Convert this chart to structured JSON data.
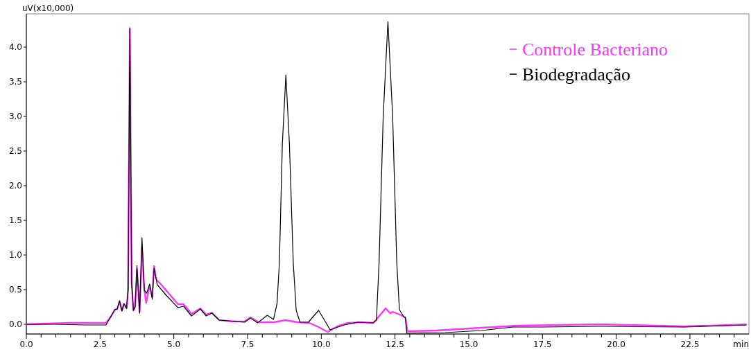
{
  "chart_data": {
    "type": "line",
    "ylabel": "uV(x10,000)",
    "xlabel": "min",
    "xlim": [
      0,
      24.5
    ],
    "ylim": [
      -0.14,
      4.48
    ],
    "xticks": [
      {
        "value": 0,
        "label": "0.0"
      },
      {
        "value": 0.5,
        "label": null
      },
      {
        "value": 1,
        "label": null
      },
      {
        "value": 1.5,
        "label": null
      },
      {
        "value": 2,
        "label": null
      },
      {
        "value": 2.5,
        "label": "2.5"
      },
      {
        "value": 3,
        "label": null
      },
      {
        "value": 3.5,
        "label": null
      },
      {
        "value": 4,
        "label": null
      },
      {
        "value": 4.5,
        "label": null
      },
      {
        "value": 5,
        "label": "5.0"
      },
      {
        "value": 5.5,
        "label": null
      },
      {
        "value": 6,
        "label": null
      },
      {
        "value": 6.5,
        "label": null
      },
      {
        "value": 7,
        "label": null
      },
      {
        "value": 7.5,
        "label": "7.5"
      },
      {
        "value": 8,
        "label": null
      },
      {
        "value": 8.5,
        "label": null
      },
      {
        "value": 9,
        "label": null
      },
      {
        "value": 9.5,
        "label": null
      },
      {
        "value": 10,
        "label": "10.0"
      },
      {
        "value": 10.5,
        "label": null
      },
      {
        "value": 11,
        "label": null
      },
      {
        "value": 11.5,
        "label": null
      },
      {
        "value": 12,
        "label": null
      },
      {
        "value": 12.5,
        "label": "12.5"
      },
      {
        "value": 13,
        "label": null
      },
      {
        "value": 13.5,
        "label": null
      },
      {
        "value": 14,
        "label": null
      },
      {
        "value": 14.5,
        "label": null
      },
      {
        "value": 15,
        "label": "15.0"
      },
      {
        "value": 15.5,
        "label": null
      },
      {
        "value": 16,
        "label": null
      },
      {
        "value": 16.5,
        "label": null
      },
      {
        "value": 17,
        "label": null
      },
      {
        "value": 17.5,
        "label": "17.5"
      },
      {
        "value": 18,
        "label": null
      },
      {
        "value": 18.5,
        "label": null
      },
      {
        "value": 19,
        "label": null
      },
      {
        "value": 19.5,
        "label": null
      },
      {
        "value": 20,
        "label": "20.0"
      },
      {
        "value": 20.5,
        "label": null
      },
      {
        "value": 21,
        "label": null
      },
      {
        "value": 21.5,
        "label": null
      },
      {
        "value": 22,
        "label": null
      },
      {
        "value": 22.5,
        "label": "22.5"
      },
      {
        "value": 23,
        "label": null
      },
      {
        "value": 23.5,
        "label": null
      },
      {
        "value": 24,
        "label": null
      }
    ],
    "yticks": [
      {
        "value": 0,
        "label": "0.0"
      },
      0.5,
      {
        "value": 1,
        "label": "1.0"
      },
      1.5,
      {
        "value": 2,
        "label": "2.0"
      },
      2.5,
      {
        "value": 3,
        "label": "3.0"
      },
      3.5,
      {
        "value": 4,
        "label": "4.0"
      }
    ],
    "grid": false,
    "legend": "top right",
    "line_style": "solid",
    "marker": "none",
    "series": [
      {
        "name": "Controle Bacteriano",
        "color": "#ff33ff",
        "x": [
          0,
          1.5,
          2.7,
          2.85,
          3.0,
          3.08,
          3.16,
          3.24,
          3.31,
          3.4,
          3.45,
          3.51,
          3.57,
          3.63,
          3.69,
          3.75,
          3.84,
          3.92,
          4.0,
          4.06,
          4.18,
          4.27,
          4.33,
          4.4,
          4.58,
          5.14,
          5.33,
          5.6,
          5.9,
          6.1,
          6.29,
          6.54,
          7.09,
          7.4,
          7.6,
          7.87,
          8.4,
          8.78,
          9.2,
          9.6,
          9.91,
          10.22,
          10.54,
          10.92,
          11.39,
          11.77,
          12.18,
          12.34,
          12.42,
          12.61,
          12.85,
          12.92,
          13.9,
          15.03,
          16.65,
          19.48,
          22.3,
          23.9,
          24.42
        ],
        "values": [
          0.0,
          0.02,
          0.02,
          0.1,
          0.21,
          0.22,
          0.33,
          0.2,
          0.29,
          0.23,
          0.5,
          4.26,
          0.6,
          0.2,
          0.25,
          0.8,
          0.18,
          1.1,
          0.5,
          0.31,
          0.56,
          0.4,
          0.84,
          0.65,
          0.57,
          0.29,
          0.29,
          0.15,
          0.23,
          0.14,
          0.17,
          0.06,
          0.04,
          0.04,
          0.1,
          0.03,
          0.03,
          0.06,
          0.03,
          0.02,
          -0.04,
          -0.11,
          -0.03,
          0.02,
          0.03,
          0.02,
          0.23,
          0.16,
          0.18,
          0.15,
          0.1,
          -0.1,
          -0.09,
          -0.06,
          -0.02,
          0.0,
          -0.03,
          -0.01,
          0.0
        ]
      },
      {
        "name": "Biodegradação",
        "color": "#000000",
        "x": [
          0,
          1.0,
          2.0,
          2.7,
          2.85,
          3.0,
          3.08,
          3.16,
          3.24,
          3.31,
          3.4,
          3.45,
          3.51,
          3.57,
          3.63,
          3.69,
          3.75,
          3.84,
          3.92,
          4.0,
          4.08,
          4.18,
          4.27,
          4.33,
          4.44,
          4.74,
          5.14,
          5.33,
          5.6,
          5.9,
          6.1,
          6.29,
          6.54,
          7.09,
          7.4,
          7.6,
          7.84,
          8.17,
          8.38,
          8.5,
          8.58,
          8.68,
          8.8,
          8.92,
          9.05,
          9.15,
          9.28,
          9.56,
          9.91,
          10.05,
          10.3,
          10.77,
          11.24,
          11.75,
          11.87,
          11.96,
          12.1,
          12.26,
          12.42,
          12.56,
          12.65,
          12.81,
          12.85,
          12.9,
          14.2,
          15.43,
          16.49,
          17.45,
          19.48,
          22.3,
          24.42
        ],
        "values": [
          0.0,
          0.0,
          -0.01,
          -0.01,
          0.1,
          0.21,
          0.22,
          0.34,
          0.19,
          0.3,
          0.23,
          0.5,
          4.28,
          0.6,
          0.2,
          0.26,
          0.85,
          0.16,
          1.25,
          0.49,
          0.45,
          0.58,
          0.36,
          0.81,
          0.57,
          0.42,
          0.24,
          0.26,
          0.12,
          0.22,
          0.12,
          0.16,
          0.06,
          0.04,
          0.03,
          0.09,
          0.02,
          0.13,
          0.07,
          0.3,
          0.89,
          2.6,
          3.6,
          2.6,
          0.89,
          0.2,
          0.03,
          0.03,
          0.2,
          0.1,
          -0.08,
          -0.01,
          0.03,
          0.02,
          0.06,
          0.89,
          3.0,
          4.37,
          3.0,
          0.89,
          0.21,
          0.1,
          0.1,
          -0.13,
          -0.12,
          -0.09,
          -0.04,
          -0.04,
          -0.03,
          -0.04,
          -0.01
        ]
      }
    ]
  }
}
